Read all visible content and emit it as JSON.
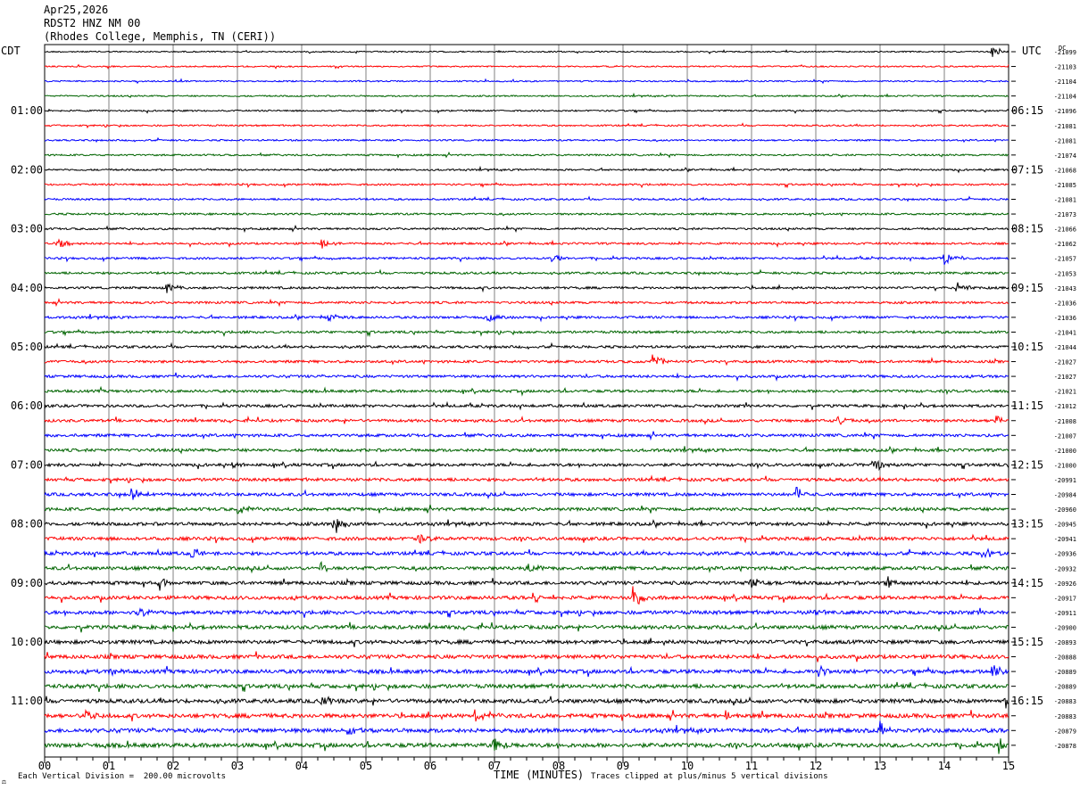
{
  "header": {
    "date": "Apr25,2026",
    "station": "RDST2 HNZ NM 00",
    "location": "(Rhodes College, Memphis, TN (CERI))"
  },
  "left_timezone": "CDT",
  "right_timezone": "UTC",
  "dc_label": "DC",
  "footer": {
    "scale_text": "Each Vertical Division =  200.00 microvolts",
    "clip_text": "Traces clipped at plus/minus 5 vertical divisions",
    "corner_mark": "⚖"
  },
  "colors": {
    "trace_cycle": [
      "#000000",
      "#ff0000",
      "#0000ff",
      "#006400"
    ],
    "grid": "#808080",
    "frame": "#000000"
  },
  "chart_data": {
    "type": "line",
    "subtype": "helicorder",
    "xlabel": "TIME (MINUTES)",
    "x_ticks": [
      "00",
      "01",
      "02",
      "03",
      "04",
      "05",
      "06",
      "07",
      "08",
      "09",
      "10",
      "11",
      "12",
      "13",
      "14",
      "15"
    ],
    "xlim": [
      0,
      15
    ],
    "left_hour_labels": [
      "01:00",
      "02:00",
      "03:00",
      "04:00",
      "05:00",
      "06:00",
      "07:00",
      "08:00",
      "09:00",
      "10:00",
      "11:00"
    ],
    "right_hour_labels": [
      "06:15",
      "07:15",
      "08:15",
      "09:15",
      "10:15",
      "11:15",
      "12:15",
      "13:15",
      "14:15",
      "15:15",
      "16:15"
    ],
    "dc_offsets": [
      "-21099",
      "-21103",
      "-21104",
      "-21104",
      "-21096",
      "-21081",
      "-21081",
      "-21074",
      "-21068",
      "-21085",
      "-21081",
      "-21073",
      "-21066",
      "-21062",
      "-21057",
      "-21053",
      "-21043",
      "-21036",
      "-21036",
      "-21041",
      "-21044",
      "-21027",
      "-21027",
      "-21021",
      "-21012",
      "-21008",
      "-21007",
      "-21000",
      "-21000",
      "-20991",
      "-20984",
      "-20960",
      "-20945",
      "-20941",
      "-20936",
      "-20932",
      "-20926",
      "-20917",
      "-20911",
      "-20900",
      "-20893",
      "-20888",
      "-20889",
      "-20889",
      "-20883",
      "-20883",
      "-20879",
      "-20878"
    ],
    "traces_count": 48,
    "events": [
      {
        "trace": 0,
        "minute": 14.75,
        "amp": 6
      },
      {
        "trace": 13,
        "minute": 0.2,
        "amp": 9
      },
      {
        "trace": 13,
        "minute": 4.3,
        "amp": 6
      },
      {
        "trace": 14,
        "minute": 7.9,
        "amp": 7
      },
      {
        "trace": 14,
        "minute": 13.95,
        "amp": 12
      },
      {
        "trace": 16,
        "minute": 1.9,
        "amp": 6
      },
      {
        "trace": 16,
        "minute": 14.2,
        "amp": 8
      },
      {
        "trace": 18,
        "minute": 4.4,
        "amp": 6
      },
      {
        "trace": 18,
        "minute": 6.9,
        "amp": 6
      },
      {
        "trace": 21,
        "minute": 9.45,
        "amp": 10
      },
      {
        "trace": 25,
        "minute": 12.35,
        "amp": 6
      },
      {
        "trace": 25,
        "minute": 14.8,
        "amp": 6
      },
      {
        "trace": 28,
        "minute": 2.9,
        "amp": 6
      },
      {
        "trace": 28,
        "minute": 12.9,
        "amp": 9
      },
      {
        "trace": 30,
        "minute": 1.35,
        "amp": 9
      },
      {
        "trace": 30,
        "minute": 11.7,
        "amp": 9
      },
      {
        "trace": 31,
        "minute": 3.0,
        "amp": 7
      },
      {
        "trace": 32,
        "minute": 4.5,
        "amp": 11
      },
      {
        "trace": 33,
        "minute": 5.8,
        "amp": 7
      },
      {
        "trace": 34,
        "minute": 2.3,
        "amp": 9
      },
      {
        "trace": 34,
        "minute": 14.6,
        "amp": 8
      },
      {
        "trace": 35,
        "minute": 4.3,
        "amp": 8
      },
      {
        "trace": 35,
        "minute": 7.5,
        "amp": 8
      },
      {
        "trace": 36,
        "minute": 1.8,
        "amp": 9
      },
      {
        "trace": 36,
        "minute": 11.0,
        "amp": 9
      },
      {
        "trace": 36,
        "minute": 13.1,
        "amp": 7
      },
      {
        "trace": 37,
        "minute": 7.6,
        "amp": 9
      },
      {
        "trace": 37,
        "minute": 9.15,
        "amp": 14
      },
      {
        "trace": 38,
        "minute": 1.45,
        "amp": 6
      },
      {
        "trace": 38,
        "minute": 11.95,
        "amp": 7
      },
      {
        "trace": 42,
        "minute": 1.0,
        "amp": 7
      },
      {
        "trace": 42,
        "minute": 12.05,
        "amp": 9
      },
      {
        "trace": 42,
        "minute": 14.75,
        "amp": 9
      },
      {
        "trace": 44,
        "minute": 4.3,
        "amp": 7
      },
      {
        "trace": 44,
        "minute": 14.95,
        "amp": 8
      },
      {
        "trace": 45,
        "minute": 0.6,
        "amp": 11
      },
      {
        "trace": 45,
        "minute": 6.7,
        "amp": 8
      },
      {
        "trace": 45,
        "minute": 10.6,
        "amp": 7
      },
      {
        "trace": 46,
        "minute": 4.7,
        "amp": 9
      },
      {
        "trace": 46,
        "minute": 13.0,
        "amp": 9
      },
      {
        "trace": 47,
        "minute": 7.0,
        "amp": 10
      },
      {
        "trace": 47,
        "minute": 14.85,
        "amp": 9
      }
    ]
  }
}
